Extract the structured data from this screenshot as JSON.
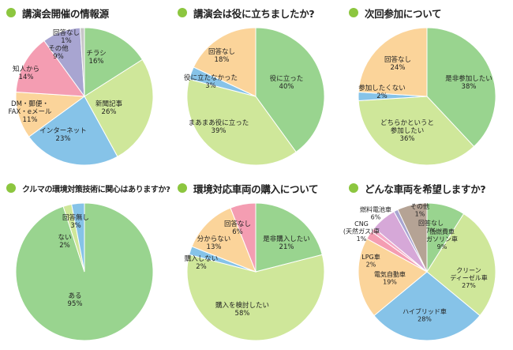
{
  "chart_data": [
    {
      "type": "pie",
      "title": "講演会開催の情報源",
      "slices": [
        {
          "label": "チラシ",
          "value": 16,
          "color": "#99d48f"
        },
        {
          "label": "新聞記事",
          "value": 26,
          "color": "#cfe79a"
        },
        {
          "label": "インターネット",
          "value": 23,
          "color": "#86c3e8"
        },
        {
          "label": "DM・郵便・\nFAX・eメール",
          "value": 11,
          "color": "#fbd49a"
        },
        {
          "label": "知人から",
          "value": 14,
          "color": "#f49db2"
        },
        {
          "label": "その他",
          "value": 9,
          "color": "#a8a5d1"
        },
        {
          "label": "回答なし",
          "value": 1,
          "color": "#c7c7c7"
        }
      ]
    },
    {
      "type": "pie",
      "title": "講演会は役に立ちましたか?",
      "slices": [
        {
          "label": "役に立った",
          "value": 40,
          "color": "#99d48f"
        },
        {
          "label": "まあまあ役に立った",
          "value": 39,
          "color": "#cfe79a"
        },
        {
          "label": "役に立たなかった",
          "value": 3,
          "color": "#86c3e8"
        },
        {
          "label": "回答なし",
          "value": 18,
          "color": "#fbd49a"
        }
      ]
    },
    {
      "type": "pie",
      "title": "次回参加について",
      "slices": [
        {
          "label": "是非参加したい",
          "value": 38,
          "color": "#99d48f"
        },
        {
          "label": "どちらかというと\n参加したい",
          "value": 36,
          "color": "#cfe79a"
        },
        {
          "label": "参加したくない",
          "value": 2,
          "color": "#86c3e8"
        },
        {
          "label": "回答なし",
          "value": 24,
          "color": "#fbd49a"
        }
      ]
    },
    {
      "type": "pie",
      "title": "クルマの環境対策技術に関心はありますか?",
      "slices": [
        {
          "label": "ある",
          "value": 95,
          "color": "#99d48f"
        },
        {
          "label": "ない",
          "value": 2,
          "color": "#cfe79a"
        },
        {
          "label": "回答無し",
          "value": 3,
          "color": "#86c3e8"
        }
      ]
    },
    {
      "type": "pie",
      "title": "環境対応車両の購入について",
      "slices": [
        {
          "label": "是非購入したい",
          "value": 21,
          "color": "#99d48f"
        },
        {
          "label": "購入を検討したい",
          "value": 58,
          "color": "#cfe79a"
        },
        {
          "label": "購入しない",
          "value": 2,
          "color": "#86c3e8"
        },
        {
          "label": "分からない",
          "value": 13,
          "color": "#fbd49a"
        },
        {
          "label": "回答なし",
          "value": 6,
          "color": "#f49db2"
        }
      ]
    },
    {
      "type": "pie",
      "title": "どんな車両を希望しますか?",
      "slices": [
        {
          "label": "低燃費車\nガソリン車",
          "value": 9,
          "color": "#99d48f"
        },
        {
          "label": "クリーン\nディーゼル車",
          "value": 27,
          "color": "#cfe79a"
        },
        {
          "label": "ハイブリッド車",
          "value": 28,
          "color": "#86c3e8"
        },
        {
          "label": "電気自動車",
          "value": 19,
          "color": "#fbd49a"
        },
        {
          "label": "LPG車",
          "value": 2,
          "color": "#f49db2"
        },
        {
          "label": "CNG\n(天然ガス)車",
          "value": 1,
          "color": "#f5a9c6"
        },
        {
          "label": "燃料電池車",
          "value": 6,
          "color": "#d6a8d8"
        },
        {
          "label": "その他",
          "value": 1,
          "color": "#a8a5d1"
        },
        {
          "label": "回答なし",
          "value": 7,
          "color": "#b5a395"
        }
      ]
    }
  ]
}
